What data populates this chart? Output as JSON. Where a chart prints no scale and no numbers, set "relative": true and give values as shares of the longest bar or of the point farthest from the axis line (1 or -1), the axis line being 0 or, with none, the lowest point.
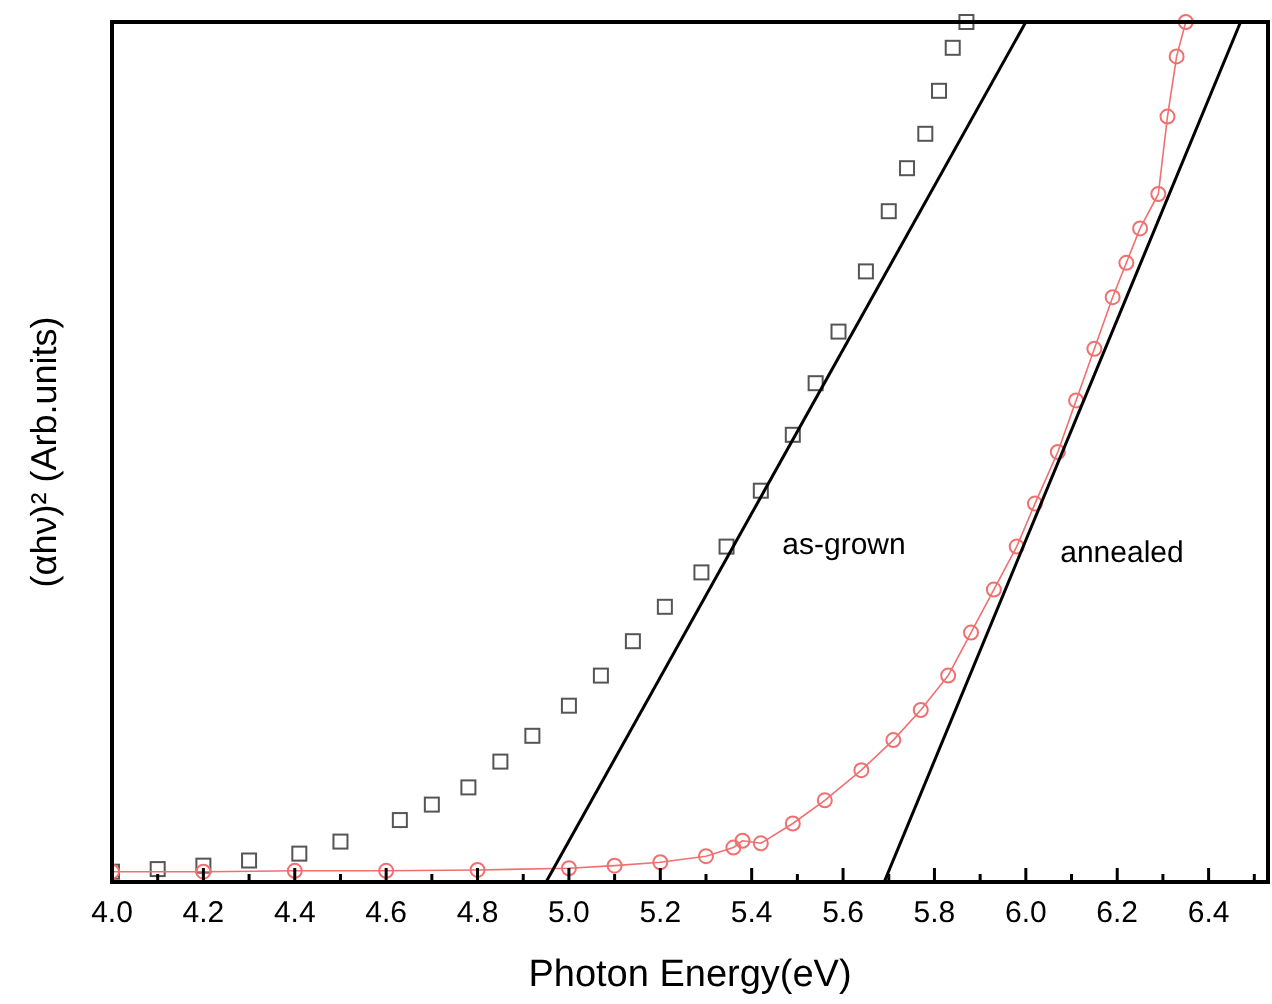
{
  "chart_data": {
    "type": "scatter",
    "xlabel": "Photon Energy(eV)",
    "ylabel": "(αhν)² (Arb.units)",
    "relative": true,
    "xlim": [
      4.0,
      6.53
    ],
    "xticks": [
      {
        "value": 4.0,
        "label": "4.0"
      },
      {
        "value": 4.1,
        "label": null
      },
      {
        "value": 4.2,
        "label": "4.2"
      },
      {
        "value": 4.3,
        "label": null
      },
      {
        "value": 4.4,
        "label": "4.4"
      },
      {
        "value": 4.5,
        "label": null
      },
      {
        "value": 4.6,
        "label": "4.6"
      },
      {
        "value": 4.7,
        "label": null
      },
      {
        "value": 4.8,
        "label": "4.8"
      },
      {
        "value": 4.9,
        "label": null
      },
      {
        "value": 5.0,
        "label": "5.0"
      },
      {
        "value": 5.1,
        "label": null
      },
      {
        "value": 5.2,
        "label": "5.2"
      },
      {
        "value": 5.3,
        "label": null
      },
      {
        "value": 5.4,
        "label": "5.4"
      },
      {
        "value": 5.5,
        "label": null
      },
      {
        "value": 5.6,
        "label": "5.6"
      },
      {
        "value": 5.7,
        "label": null
      },
      {
        "value": 5.8,
        "label": "5.8"
      },
      {
        "value": 5.9,
        "label": null
      },
      {
        "value": 6.0,
        "label": "6.0"
      },
      {
        "value": 6.1,
        "label": null
      },
      {
        "value": 6.2,
        "label": "6.2"
      },
      {
        "value": 6.3,
        "label": null
      },
      {
        "value": 6.4,
        "label": "6.4"
      },
      {
        "value": 6.5,
        "label": null
      }
    ],
    "grid": false,
    "series": [
      {
        "marker": "square",
        "color": "#555555",
        "x": [
          4.0,
          4.1,
          4.2,
          4.3,
          4.41,
          4.5,
          4.63,
          4.7,
          4.78,
          4.85,
          4.92,
          5.0,
          5.07,
          5.14,
          5.21,
          5.29,
          5.345,
          5.42,
          5.49,
          5.54,
          5.59,
          5.65,
          5.7,
          5.74,
          5.78,
          5.81,
          5.84,
          5.87
        ],
        "values": [
          0.012,
          0.015,
          0.019,
          0.025,
          0.033,
          0.047,
          0.072,
          0.09,
          0.11,
          0.14,
          0.17,
          0.205,
          0.24,
          0.28,
          0.32,
          0.36,
          0.39,
          0.455,
          0.52,
          0.58,
          0.64,
          0.71,
          0.78,
          0.83,
          0.87,
          0.92,
          0.97,
          1.0
        ]
      },
      {
        "type": "line",
        "marker": "circle",
        "line_style": "solid",
        "color": "#f07070",
        "x": [
          4.0,
          4.2,
          4.4,
          4.6,
          4.8,
          5.0,
          5.1,
          5.2,
          5.3,
          5.36,
          5.38,
          5.42,
          5.49,
          5.56,
          5.64,
          5.71,
          5.77,
          5.83,
          5.88,
          5.93,
          5.98,
          6.02,
          6.07,
          6.11,
          6.15,
          6.19,
          6.22,
          6.25,
          6.29,
          6.31,
          6.33,
          6.35
        ],
        "values": [
          0.012,
          0.012,
          0.013,
          0.013,
          0.014,
          0.016,
          0.019,
          0.023,
          0.03,
          0.04,
          0.048,
          0.045,
          0.068,
          0.095,
          0.13,
          0.165,
          0.2,
          0.24,
          0.29,
          0.34,
          0.39,
          0.44,
          0.5,
          0.56,
          0.62,
          0.68,
          0.72,
          0.76,
          0.8,
          0.89,
          0.96,
          1.0
        ]
      },
      {
        "type": "line",
        "marker": "none",
        "line_style": "solid",
        "color": "#000000",
        "x": [
          4.95,
          6.0
        ],
        "values": [
          0,
          1
        ]
      },
      {
        "type": "line",
        "marker": "none",
        "line_style": "solid",
        "color": "#000000",
        "x": [
          5.69,
          6.47
        ],
        "values": [
          0,
          1
        ]
      }
    ],
    "annotations": [
      "as-grown",
      "annealed"
    ]
  }
}
